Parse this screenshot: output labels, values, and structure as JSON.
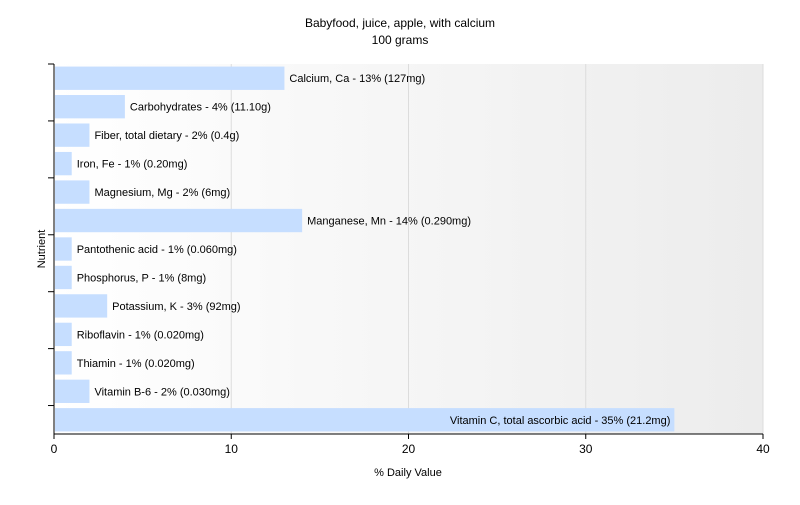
{
  "chart_data": {
    "type": "bar",
    "orientation": "horizontal",
    "title": "Babyfood, juice, apple, with calcium",
    "subtitle": "100 grams",
    "xlabel": "% Daily Value",
    "ylabel": "Nutrient",
    "xlim": [
      0,
      40
    ],
    "x_ticks": [
      "0",
      "10",
      "20",
      "30",
      "40"
    ],
    "grid": "vertical",
    "bar_color": "#c6deff",
    "categories": [
      "Calcium, Ca",
      "Carbohydrates",
      "Fiber, total dietary",
      "Iron, Fe",
      "Magnesium, Mg",
      "Manganese, Mn",
      "Pantothenic acid",
      "Phosphorus, P",
      "Potassium, K",
      "Riboflavin",
      "Thiamin",
      "Vitamin B-6",
      "Vitamin C, total ascorbic acid"
    ],
    "values": [
      13,
      4,
      2,
      1,
      2,
      14,
      1,
      1,
      3,
      1,
      1,
      2,
      35
    ],
    "labels": [
      "Calcium, Ca - 13% (127mg)",
      "Carbohydrates - 4% (11.10g)",
      "Fiber, total dietary - 2% (0.4g)",
      "Iron, Fe - 1% (0.20mg)",
      "Magnesium, Mg - 2% (6mg)",
      "Manganese, Mn - 14% (0.290mg)",
      "Pantothenic acid - 1% (0.060mg)",
      "Phosphorus, P - 1% (8mg)",
      "Potassium, K - 3% (92mg)",
      "Riboflavin - 1% (0.020mg)",
      "Thiamin - 1% (0.020mg)",
      "Vitamin B-6 - 2% (0.030mg)",
      "Vitamin C, total ascorbic acid - 35% (21.2mg)"
    ]
  }
}
